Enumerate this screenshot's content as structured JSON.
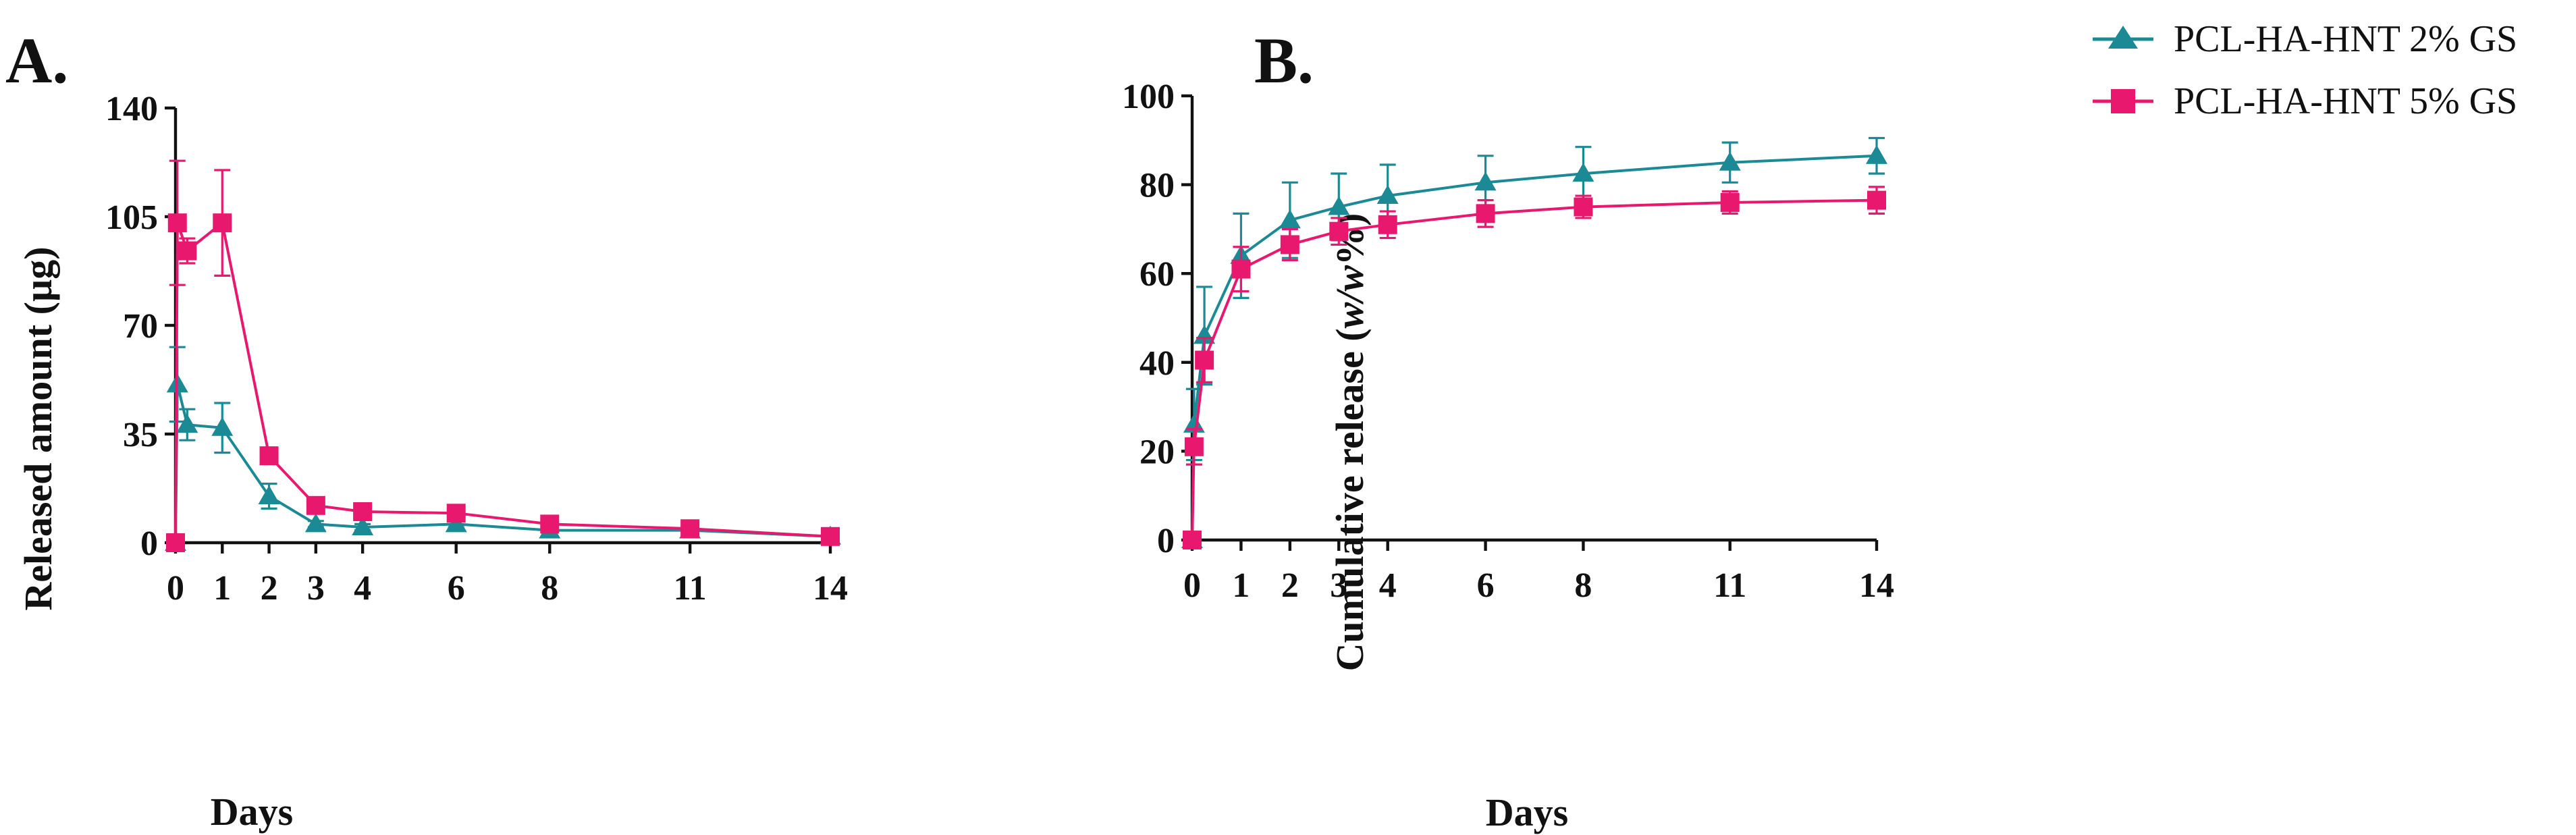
{
  "figure": {
    "colors": {
      "teal": "#1b8a94",
      "pink": "#e8186e",
      "axis": "#111111"
    },
    "legend": [
      {
        "label": "PCL-HA-HNT 2% GS",
        "color": "#1b8a94",
        "marker": "triangle"
      },
      {
        "label": "PCL-HA-HNT 5% GS",
        "color": "#e8186e",
        "marker": "square"
      }
    ]
  },
  "chart_data": [
    {
      "panel": "A.",
      "type": "line",
      "title": "",
      "xlabel": "Days",
      "ylabel": "Released amount (µg)",
      "xlim": [
        0,
        14
      ],
      "ylim": [
        0,
        140
      ],
      "xticks": [
        0,
        1,
        2,
        3,
        4,
        6,
        8,
        11,
        14
      ],
      "yticks": [
        0,
        35,
        70,
        105,
        140
      ],
      "series": [
        {
          "name": "PCL-HA-HNT 2% GS",
          "color": "#1b8a94",
          "marker": "triangle",
          "x": [
            0,
            0.04,
            0.25,
            1,
            2,
            3,
            4,
            6,
            8,
            11,
            14
          ],
          "y": [
            0,
            51,
            38,
            37,
            15,
            6,
            5,
            6,
            4,
            4,
            2
          ],
          "err": [
            0,
            12,
            5,
            8,
            4,
            1,
            1,
            1,
            1,
            1,
            0.5
          ]
        },
        {
          "name": "PCL-HA-HNT 5% GS",
          "color": "#e8186e",
          "marker": "square",
          "x": [
            0,
            0.04,
            0.25,
            1,
            2,
            3,
            4,
            6,
            8,
            11,
            14
          ],
          "y": [
            0,
            103,
            94,
            103,
            28,
            12,
            10,
            9.5,
            6,
            4.5,
            2
          ],
          "err": [
            0,
            20,
            4,
            17,
            1.5,
            1,
            1,
            1,
            1,
            0.5,
            0.5
          ]
        }
      ]
    },
    {
      "panel": "B.",
      "type": "line",
      "title": "",
      "xlabel": "Days",
      "ylabel_main": "Cumulative release (",
      "ylabel_italic": "w/w",
      "ylabel_tail": "%)",
      "xlim": [
        0,
        14
      ],
      "ylim": [
        0,
        100
      ],
      "xticks": [
        0,
        1,
        2,
        3,
        4,
        6,
        8,
        11,
        14
      ],
      "yticks": [
        0,
        20,
        40,
        60,
        80,
        100
      ],
      "series": [
        {
          "name": "PCL-HA-HNT 2% GS",
          "color": "#1b8a94",
          "marker": "triangle",
          "x": [
            0,
            0.04,
            0.25,
            1,
            2,
            3,
            4,
            6,
            8,
            11,
            14
          ],
          "y": [
            0,
            26,
            46,
            64,
            72,
            75,
            77.5,
            80.5,
            82.5,
            85,
            86.5
          ],
          "err": [
            0,
            8,
            11,
            9.5,
            8.5,
            7.5,
            7,
            6,
            6,
            4.5,
            4
          ]
        },
        {
          "name": "PCL-HA-HNT 5% GS",
          "color": "#e8186e",
          "marker": "square",
          "x": [
            0,
            0.04,
            0.25,
            1,
            2,
            3,
            4,
            6,
            8,
            11,
            14
          ],
          "y": [
            0,
            21,
            40.5,
            61,
            66.5,
            69.5,
            71,
            73.5,
            75,
            76,
            76.5
          ],
          "err": [
            0,
            4,
            5,
            5,
            3.5,
            3,
            3,
            3,
            2.5,
            2.5,
            3
          ]
        }
      ]
    }
  ]
}
